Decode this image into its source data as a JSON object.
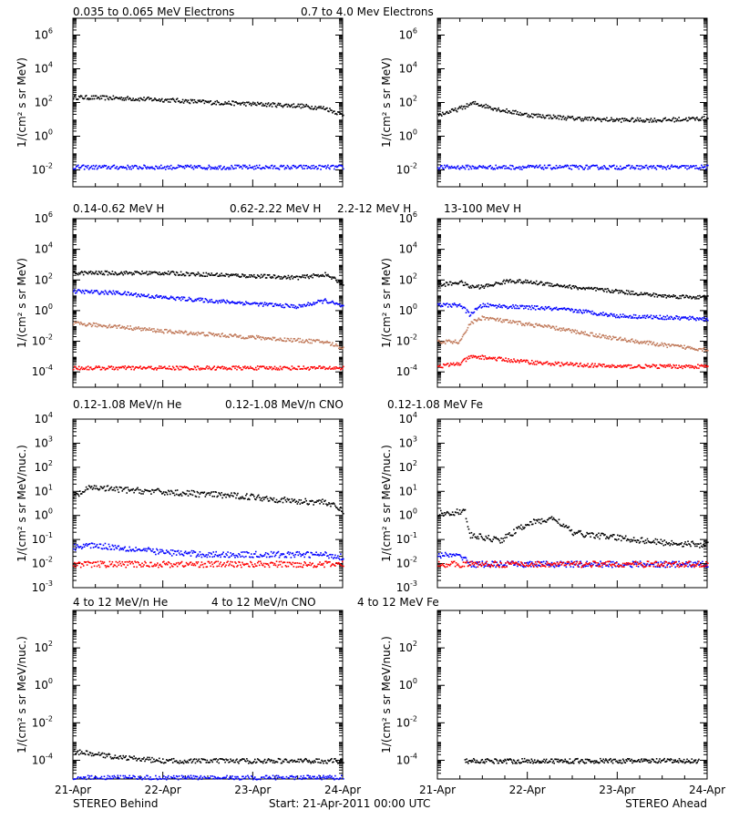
{
  "colors": {
    "black": "#000000",
    "blue": "#0000ff",
    "tan": "#c07858",
    "red": "#ff0000"
  },
  "footer": {
    "left": "STEREO Behind",
    "center": "Start: 21-Apr-2011 00:00 UTC",
    "right": "STEREO Ahead"
  },
  "x_ticks": [
    "21-Apr",
    "22-Apr",
    "23-Apr",
    "24-Apr"
  ],
  "rows": [
    {
      "legend": [
        {
          "text": "0.035 to 0.065 MeV Electrons",
          "color": "#000000"
        },
        {
          "text": "0.7 to 4.0 Mev Electrons",
          "color": "#0000ff"
        }
      ]
    },
    {
      "legend": [
        {
          "text": "0.14-0.62 MeV H",
          "color": "#000000"
        },
        {
          "text": "0.62-2.22 MeV H",
          "color": "#0000ff"
        },
        {
          "text": "2.2-12 MeV H",
          "color": "#c07858"
        },
        {
          "text": "13-100 MeV H",
          "color": "#ff0000"
        }
      ]
    },
    {
      "legend": [
        {
          "text": "0.12-1.08 MeV/n He",
          "color": "#000000"
        },
        {
          "text": "0.12-1.08 MeV/n CNO",
          "color": "#0000ff"
        },
        {
          "text": "0.12-1.08 MeV Fe",
          "color": "#ff0000"
        }
      ]
    },
    {
      "legend": [
        {
          "text": "4 to 12 MeV/n He",
          "color": "#000000"
        },
        {
          "text": "4 to 12 MeV/n CNO",
          "color": "#0000ff"
        },
        {
          "text": "4 to 12 MeV Fe",
          "color": "#ff0000"
        }
      ]
    }
  ],
  "chart_data": [
    {
      "type": "scatter",
      "panel": "electrons-behind",
      "ylabel": "1/(cm² s sr MeV)",
      "yscale": "log",
      "ylim_log10": [
        -3,
        7
      ],
      "ytick_exponents": [
        -2,
        0,
        2,
        4,
        6
      ],
      "xlim_days": [
        0,
        3
      ],
      "x": [
        0,
        0.5,
        1,
        1.5,
        2,
        2.5,
        2.8,
        3
      ],
      "series": [
        {
          "name": "0.035 to 0.065 MeV Electrons",
          "color": "#000000",
          "log10": [
            2.35,
            2.3,
            2.2,
            2.05,
            1.95,
            1.85,
            1.7,
            1.3
          ]
        },
        {
          "name": "0.7 to 4.0 Mev Electrons",
          "color": "#0000ff",
          "log10": [
            -1.8,
            -1.8,
            -1.8,
            -1.8,
            -1.8,
            -1.8,
            -1.8,
            -1.8
          ]
        }
      ]
    },
    {
      "type": "scatter",
      "panel": "electrons-ahead",
      "ylabel": "1/(cm² s sr MeV)",
      "yscale": "log",
      "ylim_log10": [
        -3,
        7
      ],
      "ytick_exponents": [
        -2,
        0,
        2,
        4,
        6
      ],
      "xlim_days": [
        0,
        3
      ],
      "x": [
        0,
        0.2,
        0.4,
        0.7,
        1.0,
        1.5,
        2.0,
        2.5,
        3.0
      ],
      "series": [
        {
          "name": "0.035 to 0.065 MeV Electrons",
          "color": "#000000",
          "log10": [
            1.3,
            1.6,
            2.0,
            1.6,
            1.3,
            1.1,
            1.0,
            1.0,
            1.1
          ]
        },
        {
          "name": "0.7 to 4.0 Mev Electrons",
          "color": "#0000ff",
          "log10": [
            -1.8,
            -1.8,
            -1.8,
            -1.8,
            -1.8,
            -1.8,
            -1.8,
            -1.8,
            -1.8
          ]
        }
      ]
    },
    {
      "type": "scatter",
      "panel": "protons-behind",
      "ylabel": "1/(cm² s sr MeV)",
      "yscale": "log",
      "ylim_log10": [
        -5,
        6
      ],
      "ytick_exponents": [
        -4,
        -2,
        0,
        2,
        4,
        6
      ],
      "xlim_days": [
        0,
        3
      ],
      "x": [
        0,
        0.5,
        1,
        1.5,
        2,
        2.5,
        2.8,
        3
      ],
      "series": [
        {
          "name": "0.14-0.62 MeV H",
          "color": "#000000",
          "log10": [
            2.5,
            2.5,
            2.5,
            2.4,
            2.3,
            2.2,
            2.4,
            1.8
          ]
        },
        {
          "name": "0.62-2.22 MeV H",
          "color": "#0000ff",
          "log10": [
            1.3,
            1.2,
            0.9,
            0.7,
            0.5,
            0.3,
            0.7,
            0.3
          ]
        },
        {
          "name": "2.2-12 MeV H",
          "color": "#c07858",
          "log10": [
            -0.8,
            -1.0,
            -1.3,
            -1.5,
            -1.7,
            -1.9,
            -2.0,
            -2.4
          ]
        },
        {
          "name": "13-100 MeV H",
          "color": "#ff0000",
          "log10": [
            -3.7,
            -3.7,
            -3.7,
            -3.7,
            -3.7,
            -3.7,
            -3.7,
            -3.7
          ]
        }
      ]
    },
    {
      "type": "scatter",
      "panel": "protons-ahead",
      "ylabel": "1/(cm² s sr MeV)",
      "yscale": "log",
      "ylim_log10": [
        -5,
        6
      ],
      "ytick_exponents": [
        -4,
        -2,
        0,
        2,
        4,
        6
      ],
      "xlim_days": [
        0,
        3
      ],
      "x": [
        0,
        0.25,
        0.35,
        0.5,
        0.8,
        1.2,
        1.6,
        2.0,
        2.5,
        3.0
      ],
      "series": [
        {
          "name": "0.14-0.62 MeV H",
          "color": "#000000",
          "log10": [
            1.7,
            1.9,
            1.6,
            1.6,
            2.0,
            1.8,
            1.5,
            1.3,
            1.0,
            0.9
          ]
        },
        {
          "name": "0.62-2.22 MeV H",
          "color": "#0000ff",
          "log10": [
            0.4,
            0.4,
            -0.2,
            0.4,
            0.3,
            0.2,
            0.0,
            -0.3,
            -0.4,
            -0.5
          ]
        },
        {
          "name": "2.2-12 MeV H",
          "color": "#c07858",
          "log10": [
            -2.0,
            -2.0,
            -0.8,
            -0.4,
            -0.7,
            -1.0,
            -1.4,
            -1.8,
            -2.2,
            -2.5
          ]
        },
        {
          "name": "13-100 MeV H",
          "color": "#ff0000",
          "log10": [
            -3.6,
            -3.4,
            -3.0,
            -3.0,
            -3.2,
            -3.4,
            -3.5,
            -3.6,
            -3.6,
            -3.6
          ]
        }
      ]
    },
    {
      "type": "scatter",
      "panel": "heavy-ions-behind",
      "ylabel": "1/(cm² s sr MeV/nuc.)",
      "yscale": "log",
      "ylim_log10": [
        -3,
        4
      ],
      "ytick_exponents": [
        -3,
        -2,
        -1,
        0,
        1,
        2,
        3,
        4
      ],
      "xlim_days": [
        0,
        3
      ],
      "x": [
        0,
        0.2,
        0.5,
        1.0,
        1.5,
        2.0,
        2.5,
        2.8,
        3.0
      ],
      "series": [
        {
          "name": "0.12-1.08 MeV/n He",
          "color": "#000000",
          "log10": [
            0.8,
            1.2,
            1.1,
            1.0,
            0.9,
            0.8,
            0.6,
            0.6,
            0.2
          ]
        },
        {
          "name": "0.12-1.08 MeV/n CNO",
          "color": "#0000ff",
          "log10": [
            -1.3,
            -1.2,
            -1.3,
            -1.5,
            -1.6,
            -1.6,
            -1.6,
            -1.6,
            -1.7
          ]
        },
        {
          "name": "0.12-1.08 MeV Fe",
          "color": "#ff0000",
          "log10": [
            -2.0,
            -2.0,
            -2.0,
            -2.0,
            -2.0,
            -2.0,
            -2.0,
            -2.0,
            -2.0
          ]
        }
      ]
    },
    {
      "type": "scatter",
      "panel": "heavy-ions-ahead",
      "ylabel": "1/(cm² s sr MeV/nuc.)",
      "yscale": "log",
      "ylim_log10": [
        -3,
        4
      ],
      "ytick_exponents": [
        -3,
        -2,
        -1,
        0,
        1,
        2,
        3,
        4
      ],
      "xlim_days": [
        0,
        3
      ],
      "x": [
        0,
        0.3,
        0.35,
        0.7,
        1.0,
        1.3,
        1.5,
        2.0,
        2.5,
        3.0
      ],
      "series": [
        {
          "name": "0.12-1.08 MeV/n He",
          "color": "#000000",
          "log10": [
            0.1,
            0.2,
            -0.8,
            -1.0,
            -0.3,
            -0.1,
            -0.7,
            -0.9,
            -1.1,
            -1.2
          ]
        },
        {
          "name": "0.12-1.08 MeV/n CNO",
          "color": "#0000ff",
          "log10": [
            -1.6,
            -1.7,
            -2.0,
            -2.0,
            -2.0,
            -2.0,
            -2.0,
            -2.0,
            -2.0,
            -2.0
          ]
        },
        {
          "name": "0.12-1.08 MeV Fe",
          "color": "#ff0000",
          "log10": [
            -2.0,
            -2.0,
            -2.0,
            -2.0,
            -2.0,
            -2.0,
            -2.0,
            -2.0,
            -2.0,
            -2.0
          ]
        }
      ]
    },
    {
      "type": "scatter",
      "panel": "high-energy-ions-behind",
      "ylabel": "1/(cm² s sr MeV/nuc.)",
      "yscale": "log",
      "ylim_log10": [
        -5,
        4
      ],
      "ytick_exponents": [
        -4,
        -2,
        0,
        2
      ],
      "xlim_days": [
        0,
        3
      ],
      "x": [
        0,
        0.5,
        1.0,
        1.5,
        2.0,
        2.5,
        3.0
      ],
      "series": [
        {
          "name": "4 to 12 MeV/n He",
          "color": "#000000",
          "log10": [
            -3.5,
            -3.8,
            -4.0,
            -4.0,
            -4.0,
            -4.0,
            -4.0
          ]
        },
        {
          "name": "4 to 12 MeV/n CNO",
          "color": "#0000ff",
          "log10": [
            -4.9,
            -4.9,
            -4.9,
            -4.9,
            -4.9,
            -4.9,
            -4.9
          ]
        }
      ]
    },
    {
      "type": "scatter",
      "panel": "high-energy-ions-ahead",
      "ylabel": "1/(cm² s sr MeV/nuc.)",
      "yscale": "log",
      "ylim_log10": [
        -5,
        4
      ],
      "ytick_exponents": [
        -4,
        -2,
        0,
        2
      ],
      "xlim_days": [
        0,
        3
      ],
      "x": [
        0.3,
        1.0,
        2.0,
        2.9
      ],
      "series": [
        {
          "name": "4 to 12 MeV/n He",
          "color": "#000000",
          "log10": [
            -4.0,
            -4.0,
            -4.0,
            -4.0
          ]
        }
      ]
    }
  ]
}
